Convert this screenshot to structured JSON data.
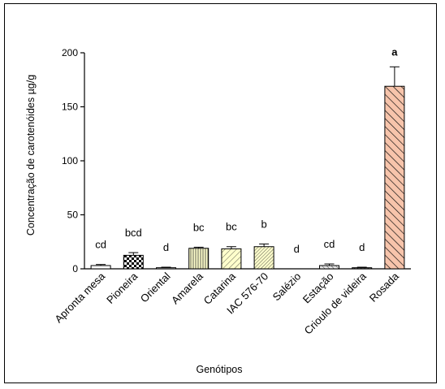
{
  "chart_data": {
    "type": "bar",
    "title": "",
    "xlabel": "Genótipos",
    "ylabel": "Concentração de carotenóides µg/g",
    "ylim": [
      0,
      200
    ],
    "yticks": [
      "0",
      "50",
      "100",
      "150",
      "200"
    ],
    "grid": false,
    "categories": [
      "Apronta mesa",
      "Pioneira",
      "Oriental",
      "Amarela",
      "Catarina",
      "IAC 576-70",
      "Salézio",
      "Estação",
      "Crioulo de videira",
      "Rosada"
    ],
    "values": [
      3,
      12.5,
      1,
      19,
      18.5,
      20.5,
      0,
      3,
      1,
      169
    ],
    "errors": [
      1,
      2.5,
      0.5,
      1,
      2,
      2.5,
      0,
      1.5,
      0.5,
      18
    ],
    "labels": [
      "cd",
      "bcd",
      "d",
      "bc",
      "bc",
      "b",
      "d",
      "cd",
      "d",
      "a"
    ],
    "patterns": [
      "stripes-light",
      "checker",
      "plain",
      "vertical-yellow",
      "hatch-yellow",
      "hatch-yellow-dense",
      "plain",
      "hatch-mixed",
      "hatch-dark",
      "hatch-salmon"
    ],
    "colors": {
      "axis": "#000000",
      "yellow_fill": "#ffffcc",
      "salmon_fill": "#f7c4ab"
    }
  }
}
